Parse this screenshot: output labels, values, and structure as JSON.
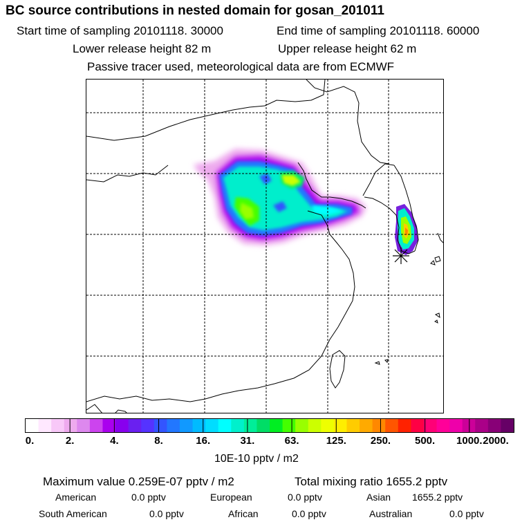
{
  "header": {
    "title": "BC  source contributions in nested domain for gosan_201011",
    "start_time": "Start time of sampling 20101118. 30000",
    "end_time": "End time of sampling 20101118. 60000",
    "lower_release": "Lower release height   82 m",
    "upper_release": "Upper release height   62 m",
    "tracer_note": "Passive tracer used, meteorological data are from ECMWF"
  },
  "colorbar": {
    "ticks": [
      "0.",
      "2.",
      "4.",
      "8.",
      "16.",
      "31.",
      "63.",
      "125.",
      "250.",
      "500.",
      "1000.",
      "2000."
    ],
    "colors": [
      "#ffffff",
      "#ffe8ff",
      "#f8c8f8",
      "#eeaaee",
      "#dd88ee",
      "#cc44ee",
      "#aa00ee",
      "#8800ee",
      "#6a20f0",
      "#5533ff",
      "#3355ff",
      "#2277ff",
      "#1199ff",
      "#00bbff",
      "#00ddff",
      "#00ffff",
      "#00f0cc",
      "#00ee99",
      "#00dd66",
      "#00ee22",
      "#44ff00",
      "#99ff00",
      "#ccff00",
      "#eeff00",
      "#ffee00",
      "#ffcc00",
      "#ffaa00",
      "#ff8800",
      "#ff5500",
      "#ff2200",
      "#ff0044",
      "#ff0077",
      "#ff0099",
      "#ee00aa",
      "#cc0099",
      "#aa0088",
      "#880077",
      "#660066"
    ],
    "unit": "10E-10 pptv / m2"
  },
  "summary": {
    "max_value": "Maximum value  0.259E-07 pptv / m2",
    "total_mixing": "Total mixing ratio     1655.2 pptv",
    "american": "American",
    "american_val": "0.0 pptv",
    "european": "European",
    "european_val": "0.0 pptv",
    "asian": "Asian",
    "asian_val": "1655.2 pptv",
    "south_american": "South American",
    "south_american_val": "0.0 pptv",
    "african": "African",
    "african_val": "0.0 pptv",
    "australian": "Australian",
    "australian_val": "0.0 pptv"
  }
}
